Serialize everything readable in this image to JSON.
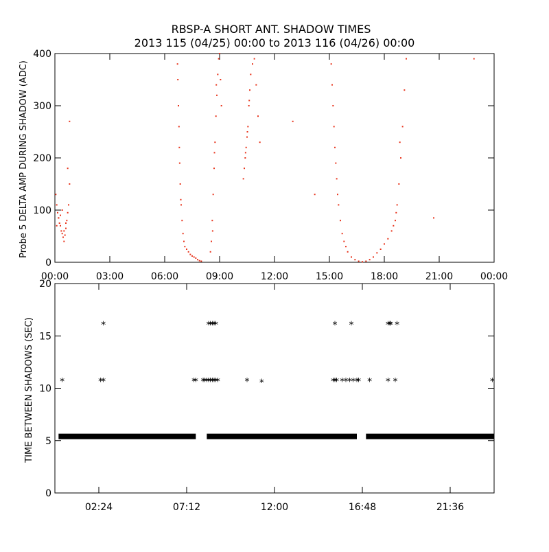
{
  "chart_data": [
    {
      "type": "scatter",
      "title": "RBSP-A SHORT ANT. SHADOW TIMES",
      "subtitle": "2013 115 (04/25) 00:00 to 2013 116 (04/26) 00:00",
      "ylabel": "Probe 5 DELTA AMP DURING SHADOW (ADC)",
      "xlabel": "",
      "x_unit": "hours",
      "xlim": [
        0,
        24
      ],
      "ylim": [
        0,
        400
      ],
      "x_ticks": [
        0,
        3,
        6,
        9,
        12,
        15,
        18,
        21,
        24
      ],
      "x_tick_labels": [
        "00:00",
        "03:00",
        "06:00",
        "09:00",
        "12:00",
        "15:00",
        "18:00",
        "21:00",
        "00:00"
      ],
      "y_ticks": [
        0,
        100,
        200,
        300,
        400
      ],
      "y_tick_labels": [
        "0",
        "100",
        "200",
        "300",
        "400"
      ],
      "color": "#e8341c",
      "series": [
        {
          "x": [
            0.05,
            0.1,
            0.15,
            0.2,
            0.25,
            0.3,
            0.35,
            0.4,
            0.45,
            0.5,
            0.55,
            0.6,
            0.65,
            0.7,
            0.75,
            0.8,
            0.1,
            0.2,
            0.3,
            0.4,
            0.5,
            0.6,
            0.7,
            0.8
          ],
          "y": [
            130,
            110,
            95,
            85,
            75,
            70,
            60,
            55,
            48,
            40,
            52,
            65,
            80,
            95,
            110,
            150,
            70,
            85,
            90,
            100,
            60,
            75,
            180,
            270
          ]
        },
        {
          "x": [
            6.7,
            6.75,
            6.8,
            6.85,
            6.9,
            6.95,
            7.0,
            7.05,
            7.1,
            7.2,
            7.3,
            7.4,
            7.5,
            7.6,
            7.7,
            7.8,
            7.9,
            8.0,
            6.72,
            6.78,
            6.82,
            6.88
          ],
          "y": [
            380,
            300,
            220,
            150,
            110,
            80,
            55,
            40,
            30,
            25,
            20,
            15,
            12,
            10,
            8,
            5,
            3,
            2,
            350,
            260,
            190,
            120
          ]
        },
        {
          "x": [
            8.5,
            8.55,
            8.6,
            8.65,
            8.7,
            8.75,
            8.8,
            8.85,
            8.9,
            8.95,
            9.0,
            9.05,
            9.1,
            8.62,
            8.72,
            8.82
          ],
          "y": [
            20,
            40,
            80,
            130,
            180,
            230,
            280,
            320,
            360,
            390,
            400,
            350,
            300,
            60,
            210,
            340
          ]
        },
        {
          "x": [
            10.3,
            10.35,
            10.4,
            10.45,
            10.5,
            10.55,
            10.6,
            10.65,
            10.7,
            10.8,
            10.9,
            11.0,
            11.1,
            11.2,
            10.42,
            10.52,
            10.62
          ],
          "y": [
            160,
            180,
            200,
            220,
            240,
            260,
            300,
            330,
            360,
            380,
            390,
            340,
            280,
            230,
            210,
            250,
            310
          ]
        },
        {
          "x": [
            15.1,
            15.2,
            15.3,
            15.4,
            15.5,
            15.6,
            15.7,
            15.8,
            15.9,
            16.0,
            16.2,
            16.4,
            16.6,
            16.8,
            15.15,
            15.25,
            15.35,
            15.45
          ],
          "y": [
            380,
            300,
            220,
            160,
            110,
            80,
            55,
            40,
            30,
            20,
            10,
            5,
            2,
            1,
            340,
            260,
            190,
            130
          ]
        },
        {
          "x": [
            17.0,
            17.2,
            17.4,
            17.6,
            17.8,
            18.0,
            18.2,
            18.4,
            18.6,
            18.7,
            18.8,
            18.9,
            19.0,
            19.1,
            19.2,
            18.5,
            18.65,
            18.85
          ],
          "y": [
            2,
            5,
            10,
            18,
            25,
            35,
            45,
            60,
            80,
            110,
            150,
            200,
            260,
            330,
            390,
            70,
            95,
            230
          ]
        },
        {
          "x": [
            13.0,
            14.2,
            20.7,
            22.9
          ],
          "y": [
            270,
            130,
            85,
            390
          ]
        }
      ]
    },
    {
      "type": "scatter",
      "title": "",
      "ylabel": "TIME BETWEEN SHADOWS (SEC)",
      "xlabel": "",
      "x_unit": "hours",
      "xlim": [
        0,
        24
      ],
      "ylim": [
        0,
        20
      ],
      "x_ticks": [
        2.4,
        7.2,
        12.0,
        16.8,
        21.6
      ],
      "x_tick_labels": [
        "02:24",
        "07:12",
        "12:00",
        "16:48",
        "21:36"
      ],
      "y_ticks": [
        0,
        5,
        10,
        15,
        20
      ],
      "y_tick_labels": [
        "0",
        "5",
        "10",
        "15",
        "20"
      ],
      "marker": "asterisk",
      "baseline": {
        "y": 5.4,
        "segments": [
          [
            0.2,
            7.7
          ],
          [
            8.3,
            16.5
          ],
          [
            17.0,
            24.0
          ]
        ]
      },
      "series": [
        {
          "x": [
            0.4,
            2.5,
            2.65,
            7.6,
            7.7,
            8.1,
            8.2,
            8.3,
            8.4,
            8.5,
            8.6,
            8.7,
            8.8,
            8.9,
            10.5,
            11.3,
            15.2,
            15.3,
            15.4,
            15.7,
            15.9,
            16.1,
            16.3,
            16.5,
            16.6,
            17.2,
            18.2,
            18.6,
            23.9
          ],
          "y": [
            10.8,
            10.8,
            10.8,
            10.8,
            10.8,
            10.8,
            10.8,
            10.8,
            10.8,
            10.8,
            10.8,
            10.8,
            10.8,
            10.8,
            10.8,
            10.7,
            10.8,
            10.8,
            10.8,
            10.8,
            10.8,
            10.8,
            10.8,
            10.8,
            10.8,
            10.8,
            10.8,
            10.8,
            10.8
          ]
        },
        {
          "x": [
            2.65,
            8.4,
            8.5,
            8.6,
            8.7,
            8.8,
            15.3,
            16.2,
            18.2,
            18.3,
            18.35,
            18.7
          ],
          "y": [
            16.2,
            16.2,
            16.2,
            16.2,
            16.2,
            16.2,
            16.2,
            16.2,
            16.2,
            16.2,
            16.2,
            16.2
          ]
        }
      ]
    }
  ]
}
